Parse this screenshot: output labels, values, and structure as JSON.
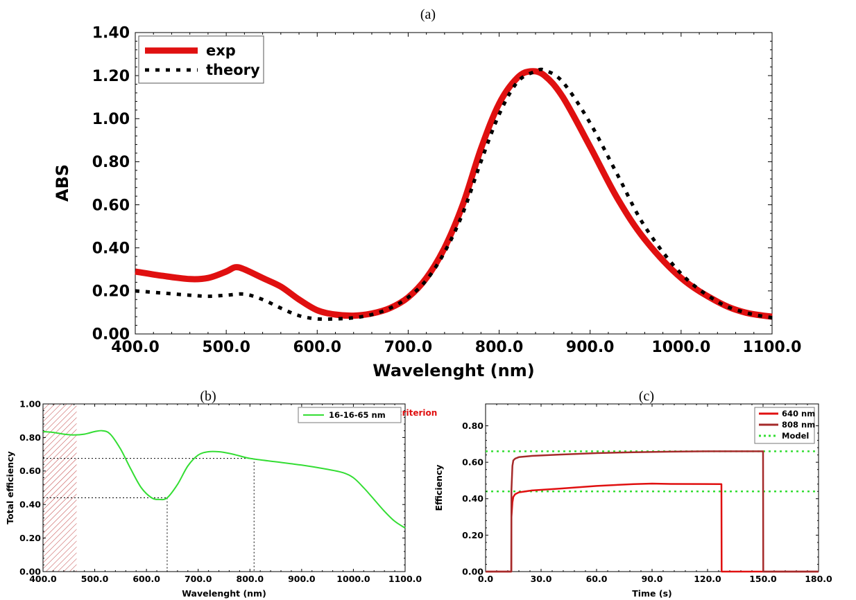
{
  "chart_data": [
    {
      "panel": "(a)",
      "type": "line",
      "xlabel": "Wavelenght (nm)",
      "ylabel": "ABS",
      "xlim": [
        400,
        1100
      ],
      "ylim": [
        0,
        1.4
      ],
      "xticks": [
        "400.0",
        "500.0",
        "600.0",
        "700.0",
        "800.0",
        "900.0",
        "1000.0",
        "1100.0"
      ],
      "yticks": [
        "0.00",
        "0.20",
        "0.40",
        "0.60",
        "0.80",
        "1.00",
        "1.20",
        "1.40"
      ],
      "legend_position": "top-left",
      "series": [
        {
          "name": "exp",
          "color": "#e01010",
          "style": "solid",
          "x": [
            400,
            430,
            460,
            480,
            500,
            510,
            520,
            540,
            560,
            580,
            600,
            620,
            640,
            660,
            680,
            700,
            720,
            740,
            760,
            780,
            800,
            820,
            835,
            850,
            870,
            900,
            930,
            960,
            1000,
            1040,
            1070,
            1100
          ],
          "y": [
            0.29,
            0.27,
            0.255,
            0.26,
            0.29,
            0.31,
            0.3,
            0.26,
            0.22,
            0.16,
            0.11,
            0.09,
            0.085,
            0.095,
            0.12,
            0.17,
            0.26,
            0.4,
            0.6,
            0.86,
            1.07,
            1.19,
            1.22,
            1.2,
            1.1,
            0.87,
            0.63,
            0.44,
            0.26,
            0.15,
            0.1,
            0.08
          ]
        },
        {
          "name": "theory",
          "color": "#000000",
          "style": "dotted",
          "x": [
            400,
            430,
            460,
            480,
            500,
            520,
            540,
            560,
            580,
            600,
            620,
            640,
            660,
            680,
            700,
            720,
            740,
            760,
            780,
            800,
            820,
            840,
            850,
            870,
            900,
            930,
            960,
            1000,
            1040,
            1070,
            1100
          ],
          "y": [
            0.2,
            0.19,
            0.18,
            0.175,
            0.18,
            0.185,
            0.16,
            0.12,
            0.085,
            0.07,
            0.07,
            0.075,
            0.09,
            0.12,
            0.17,
            0.25,
            0.38,
            0.56,
            0.8,
            1.02,
            1.17,
            1.22,
            1.225,
            1.17,
            0.98,
            0.74,
            0.5,
            0.28,
            0.15,
            0.1,
            0.075
          ]
        }
      ]
    },
    {
      "panel": "(b)",
      "type": "line",
      "xlabel": "Wavelenght (nm)",
      "ylabel": "Total efficiency",
      "xlim": [
        400,
        1100
      ],
      "ylim": [
        0,
        1
      ],
      "xticks": [
        "400.0",
        "500.0",
        "600.0",
        "700.0",
        "800.0",
        "900.0",
        "1000.0",
        "1100.0"
      ],
      "yticks": [
        "0.00",
        "0.20",
        "0.40",
        "0.60",
        "0.80",
        "1.00"
      ],
      "legend_position": "top-right",
      "shaded_region": [
        400,
        465
      ],
      "annotation": "Rayleigh criterion",
      "annotation_color": "#e01010",
      "guides": [
        {
          "x": 640,
          "y": 0.44
        },
        {
          "x": 808,
          "y": 0.675
        }
      ],
      "series": [
        {
          "name": "16-16-65 nm",
          "color": "#33dd33",
          "style": "solid",
          "x": [
            400,
            420,
            440,
            460,
            480,
            500,
            515,
            530,
            550,
            570,
            590,
            610,
            625,
            640,
            660,
            680,
            700,
            720,
            740,
            760,
            780,
            800,
            850,
            900,
            950,
            980,
            1000,
            1020,
            1040,
            1060,
            1080,
            1100
          ],
          "y": [
            0.835,
            0.83,
            0.82,
            0.815,
            0.82,
            0.835,
            0.84,
            0.82,
            0.73,
            0.61,
            0.5,
            0.44,
            0.43,
            0.44,
            0.52,
            0.63,
            0.695,
            0.715,
            0.715,
            0.705,
            0.69,
            0.675,
            0.655,
            0.635,
            0.61,
            0.59,
            0.56,
            0.5,
            0.43,
            0.36,
            0.3,
            0.26
          ]
        }
      ]
    },
    {
      "panel": "(c)",
      "type": "line",
      "xlabel": "Time (s)",
      "ylabel": "Efficiency",
      "xlim": [
        0,
        180
      ],
      "ylim": [
        0,
        0.92
      ],
      "xticks": [
        "0.0",
        "30.0",
        "60.0",
        "90.0",
        "120.0",
        "150.0",
        "180.0"
      ],
      "yticks": [
        "0.00",
        "0.20",
        "0.40",
        "0.60",
        "0.80"
      ],
      "legend_position": "top-right",
      "model_levels": [
        0.66,
        0.44
      ],
      "series": [
        {
          "name": "640 nm",
          "color": "#e01010",
          "style": "solid",
          "x": [
            0,
            13.9,
            14.0,
            14.5,
            15,
            16,
            18,
            25,
            40,
            60,
            80,
            90,
            100,
            127.5,
            127.6,
            180
          ],
          "y": [
            0,
            0,
            0.3,
            0.38,
            0.41,
            0.425,
            0.435,
            0.445,
            0.455,
            0.47,
            0.48,
            0.483,
            0.481,
            0.48,
            0,
            0
          ]
        },
        {
          "name": "808 nm",
          "color": "#a52a2a",
          "style": "solid",
          "x": [
            0,
            13.9,
            14.0,
            14.5,
            15,
            16,
            18,
            25,
            40,
            60,
            80,
            100,
            120,
            150,
            150.1,
            180
          ],
          "y": [
            0,
            0,
            0.45,
            0.58,
            0.61,
            0.62,
            0.628,
            0.635,
            0.642,
            0.65,
            0.655,
            0.658,
            0.66,
            0.66,
            0,
            0
          ]
        },
        {
          "name": "Model",
          "color": "#33dd33",
          "style": "dotted"
        }
      ]
    }
  ]
}
